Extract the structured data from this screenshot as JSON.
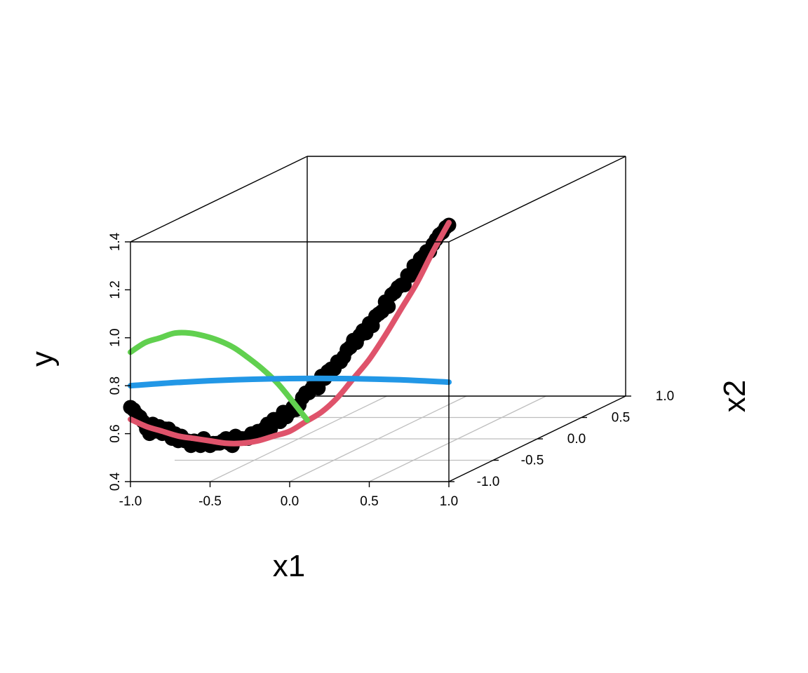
{
  "chart_data": {
    "type": "scatter",
    "projection": "3d-perspective-box",
    "xlabel": "x1",
    "ylabel": "y",
    "zlabel": "x2",
    "xlim": [
      -1.0,
      1.0
    ],
    "ylim": [
      0.4,
      1.4
    ],
    "zlim": [
      -1.0,
      1.0
    ],
    "x_ticks": [
      "-1.0",
      "-0.5",
      "0.0",
      "0.5",
      "1.0"
    ],
    "y_ticks": [
      "0.4",
      "0.6",
      "0.8",
      "1.0",
      "1.2",
      "1.4"
    ],
    "z_ticks": [
      "-1.0",
      "-0.5",
      "0.0",
      "0.5",
      "1.0"
    ],
    "grid": "floor",
    "colors": {
      "points": "#000000",
      "fit_x1": "#DF536B",
      "fit_x2": "#61D04F",
      "fit_flat": "#2297E6",
      "box": "#000000",
      "grid": "#BEBEBE"
    },
    "points": {
      "x1": [
        -1.0,
        -0.98,
        -0.96,
        -0.94,
        -0.92,
        -0.9,
        -0.88,
        -0.86,
        -0.84,
        -0.82,
        -0.8,
        -0.78,
        -0.76,
        -0.74,
        -0.72,
        -0.7,
        -0.68,
        -0.66,
        -0.64,
        -0.62,
        -0.6,
        -0.58,
        -0.56,
        -0.54,
        -0.52,
        -0.5,
        -0.48,
        -0.46,
        -0.44,
        -0.42,
        -0.4,
        -0.38,
        -0.36,
        -0.34,
        -0.32,
        -0.3,
        -0.28,
        -0.26,
        -0.24,
        -0.22,
        -0.2,
        -0.18,
        -0.16,
        -0.14,
        -0.12,
        -0.1,
        -0.08,
        -0.06,
        -0.04,
        -0.02,
        0.0,
        0.02,
        0.04,
        0.06,
        0.08,
        0.1,
        0.12,
        0.14,
        0.16,
        0.18,
        0.2,
        0.22,
        0.24,
        0.26,
        0.28,
        0.3,
        0.32,
        0.34,
        0.36,
        0.38,
        0.4,
        0.42,
        0.44,
        0.46,
        0.48,
        0.5,
        0.52,
        0.54,
        0.56,
        0.58,
        0.6,
        0.62,
        0.64,
        0.66,
        0.68,
        0.7,
        0.72,
        0.74,
        0.76,
        0.78,
        0.8,
        0.82,
        0.84,
        0.86,
        0.88,
        0.9,
        0.92,
        0.94,
        0.96,
        0.98,
        1.0
      ],
      "y": [
        0.71,
        0.7,
        0.68,
        0.67,
        0.65,
        0.62,
        0.6,
        0.64,
        0.61,
        0.63,
        0.6,
        0.62,
        0.62,
        0.58,
        0.6,
        0.57,
        0.59,
        0.57,
        0.57,
        0.55,
        0.57,
        0.56,
        0.55,
        0.58,
        0.56,
        0.55,
        0.56,
        0.56,
        0.56,
        0.57,
        0.58,
        0.56,
        0.55,
        0.59,
        0.58,
        0.58,
        0.58,
        0.58,
        0.6,
        0.59,
        0.61,
        0.61,
        0.62,
        0.64,
        0.62,
        0.66,
        0.66,
        0.65,
        0.69,
        0.67,
        0.69,
        0.71,
        0.7,
        0.72,
        0.75,
        0.77,
        0.77,
        0.79,
        0.81,
        0.79,
        0.84,
        0.83,
        0.86,
        0.87,
        0.87,
        0.9,
        0.9,
        0.92,
        0.95,
        0.96,
        0.99,
        0.98,
        1.01,
        1.03,
        1.02,
        1.06,
        1.05,
        1.09,
        1.1,
        1.11,
        1.15,
        1.13,
        1.18,
        1.19,
        1.21,
        1.22,
        1.22,
        1.26,
        1.26,
        1.3,
        1.29,
        1.33,
        1.34,
        1.36,
        1.36,
        1.39,
        1.41,
        1.43,
        1.44,
        1.46,
        1.47
      ]
    },
    "series": [
      {
        "type": "line",
        "color": "#DF536B",
        "x1": [
          -1.0,
          -0.9,
          -0.8,
          -0.7,
          -0.6,
          -0.5,
          -0.4,
          -0.3,
          -0.2,
          -0.1,
          0.0,
          0.1,
          0.2,
          0.3,
          0.4,
          0.5,
          0.6,
          0.7,
          0.8,
          0.9,
          1.0
        ],
        "x2": [
          -1.0,
          -1.0,
          -1.0,
          -1.0,
          -1.0,
          -1.0,
          -1.0,
          -1.0,
          -1.0,
          -1.0,
          -1.0,
          -1.0,
          -1.0,
          -1.0,
          -1.0,
          -1.0,
          -1.0,
          -1.0,
          -1.0,
          -1.0,
          -1.0
        ],
        "y": [
          0.66,
          0.63,
          0.61,
          0.59,
          0.58,
          0.57,
          0.56,
          0.56,
          0.57,
          0.59,
          0.61,
          0.65,
          0.69,
          0.75,
          0.83,
          0.91,
          1.01,
          1.12,
          1.23,
          1.36,
          1.48
        ]
      },
      {
        "type": "line",
        "color": "#61D04F",
        "x1": [
          -1.0,
          -1.0,
          -1.0,
          -1.0,
          -1.0,
          -1.0,
          -1.0,
          -1.0,
          -1.0,
          -1.0,
          -1.0,
          -1.0,
          -1.0
        ],
        "x2": [
          -1.0,
          -0.83,
          -0.67,
          -0.5,
          -0.33,
          -0.17,
          0.0,
          0.17,
          0.33,
          0.5,
          0.67,
          0.83,
          1.0
        ],
        "y": [
          0.94,
          0.95,
          0.94,
          0.93,
          0.9,
          0.86,
          0.81,
          0.75,
          0.68,
          0.6,
          0.51,
          0.41,
          0.3
        ]
      },
      {
        "type": "line",
        "color": "#2297E6",
        "x1": [
          -1.0,
          -0.67,
          -0.33,
          0.0,
          0.33,
          0.67,
          1.0
        ],
        "x2": [
          -1.0,
          -1.0,
          -1.0,
          -1.0,
          -1.0,
          -1.0,
          -1.0
        ],
        "y": [
          0.8,
          0.815,
          0.825,
          0.83,
          0.83,
          0.825,
          0.815
        ]
      }
    ]
  }
}
